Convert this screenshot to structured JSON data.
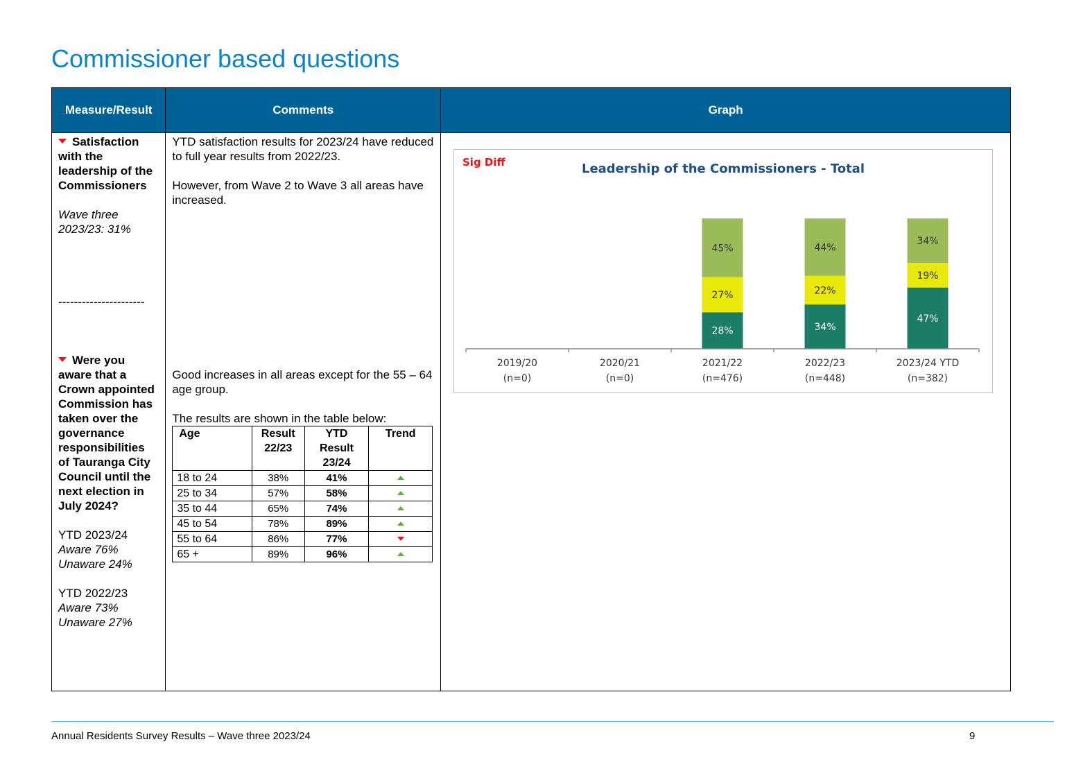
{
  "page_title": "Commissioner based questions",
  "table_headers": {
    "measure": "Measure/Result",
    "comments": "Comments",
    "graph": "Graph"
  },
  "row1": {
    "measure_title": "Satisfaction with the leadership of the Commissioners",
    "measure_note_line1": "Wave three",
    "measure_note_line2": "2023/23: 31%",
    "separator": "----------------------",
    "comment_p1": "YTD satisfaction results for 2023/24 have reduced to full year results from 2022/23.",
    "comment_p2": "However, from Wave 2 to Wave 3 all areas have increased."
  },
  "row2": {
    "measure_title": "Were you aware that a Crown appointed Commission has taken over the governance responsibilities of Tauranga City Council until the next election in July 2024?",
    "ytd_2324_label": "YTD 2023/24",
    "ytd_2324_aware": "Aware 76%",
    "ytd_2324_unaware": "Unaware 24%",
    "ytd_2223_label": "YTD 2022/23",
    "ytd_2223_aware": "Aware 73%",
    "ytd_2223_unaware": "Unaware 27%",
    "comment_p1": "Good increases in all areas except for the 55 – 64 age group.",
    "comment_p2": "The results are shown in the table below:",
    "age_table": {
      "headers": {
        "age": "Age",
        "result": "Result 22/23",
        "ytd": "YTD Result 23/24",
        "trend": "Trend"
      },
      "rows": [
        {
          "age": "18 to 24",
          "result": "38%",
          "ytd": "41%",
          "trend": "up"
        },
        {
          "age": "25 to 34",
          "result": "57%",
          "ytd": "58%",
          "trend": "up"
        },
        {
          "age": "35 to 44",
          "result": "65%",
          "ytd": "74%",
          "trend": "up"
        },
        {
          "age": "45 to 54",
          "result": "78%",
          "ytd": "89%",
          "trend": "up"
        },
        {
          "age": "55 to 64",
          "result": "86%",
          "ytd": "77%",
          "trend": "down"
        },
        {
          "age": "65 +",
          "result": "89%",
          "ytd": "96%",
          "trend": "up"
        }
      ]
    }
  },
  "trend_colors": {
    "up": "#5eac3a",
    "down": "#e2161b"
  },
  "chart_data": {
    "type": "bar",
    "stacked": true,
    "title": "Leadership of the Commissioners - Total",
    "annotation": "Sig Diff",
    "categories": [
      "2019/20",
      "2020/21",
      "2021/22",
      "2022/23",
      "2023/24 YTD"
    ],
    "category_sublabels": [
      "(n=0)",
      "(n=0)",
      "(n=476)",
      "(n=448)",
      "(n=382)"
    ],
    "series": [
      {
        "values": [
          0,
          0,
          28,
          34,
          47
        ],
        "color": "#1b7d66"
      },
      {
        "values": [
          0,
          0,
          27,
          22,
          19
        ],
        "color": "#e8e80a"
      },
      {
        "values": [
          0,
          0,
          45,
          44,
          34
        ],
        "color": "#9bbb59"
      }
    ],
    "ylim": [
      0,
      100
    ],
    "legend": "none",
    "grid": false
  },
  "footer": {
    "text": "Annual Residents Survey Results – Wave three 2023/24",
    "page": "9"
  }
}
